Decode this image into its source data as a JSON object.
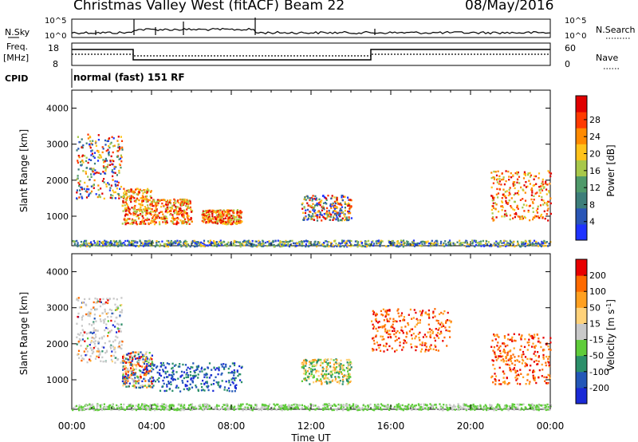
{
  "header": {
    "title": "Christmas Valley West (fitACF)",
    "beam": "Beam 22",
    "date": "08/May/2016"
  },
  "strips": {
    "nsky_label": "N.Sky",
    "nsearch_label": "N.Search",
    "freq_label_1": "Freq.",
    "freq_label_2": "[MHz]",
    "nave_label": "Nave",
    "cpid_label": "CPID",
    "cpid_value": "normal (fast) 151 RF",
    "noise_ticks": [
      "10^5",
      "10^0"
    ],
    "freq_ticks": [
      "18",
      "8"
    ],
    "nave_ticks": [
      "60",
      "0"
    ]
  },
  "colors": {
    "power": [
      "#1f33ff",
      "#2a56b6",
      "#3d7e7a",
      "#4f9a6a",
      "#a8c84a",
      "#ffc21a",
      "#ff8a00",
      "#ff3a00",
      "#e00000"
    ],
    "velocity": [
      "#1a2ad6",
      "#2357b8",
      "#2b8f6a",
      "#5fcc3a",
      "#c9c9c9",
      "#ffd27a",
      "#ffa020",
      "#ff6a00",
      "#e80000"
    ]
  },
  "chart_data": [
    {
      "type": "heatmap",
      "ylabel": "Slant Range [km]",
      "xlabel": "",
      "x_ticks": [
        "00:00",
        "04:00",
        "08:00",
        "12:00",
        "16:00",
        "20:00",
        "00:00"
      ],
      "y_ticks": [
        1000,
        2000,
        3000,
        4000
      ],
      "ylim": [
        180,
        4500
      ],
      "colorbar": {
        "label": "Power [dB]",
        "ticks": [
          "4",
          "8",
          "12",
          "16",
          "20",
          "24",
          "28"
        ],
        "range": [
          0,
          30
        ]
      },
      "scatter_regions": [
        {
          "t0": 0.2,
          "t1": 2.5,
          "r0": 1500,
          "r1": 3300,
          "level": "mixed"
        },
        {
          "t0": 2.5,
          "t1": 4.0,
          "r0": 800,
          "r1": 1800,
          "level": "high"
        },
        {
          "t0": 4.0,
          "t1": 6.0,
          "r0": 800,
          "r1": 1500,
          "level": "high"
        },
        {
          "t0": 6.5,
          "t1": 8.5,
          "r0": 800,
          "r1": 1200,
          "level": "high"
        },
        {
          "t0": 11.5,
          "t1": 14.0,
          "r0": 900,
          "r1": 1600,
          "level": "mixed"
        },
        {
          "t0": 21.0,
          "t1": 24.0,
          "r0": 900,
          "r1": 2300,
          "level": "high"
        },
        {
          "t0": 0.0,
          "t1": 24.0,
          "r0": 180,
          "r1": 350,
          "level": "ground"
        }
      ]
    },
    {
      "type": "heatmap",
      "ylabel": "Slant Range [km]",
      "xlabel": "Time UT",
      "x_ticks": [
        "00:00",
        "04:00",
        "08:00",
        "12:00",
        "16:00",
        "20:00",
        "00:00"
      ],
      "y_ticks": [
        1000,
        2000,
        3000,
        4000
      ],
      "ylim": [
        180,
        4500
      ],
      "colorbar": {
        "label": "Velocity [m s",
        "label_sup": "-1",
        "label_end": "]",
        "ticks": [
          "200",
          "100",
          "50",
          "15",
          "-15",
          "-50",
          "-100",
          "-200"
        ],
        "range": [
          -250,
          250
        ]
      },
      "scatter_regions": [
        {
          "t0": 0.2,
          "t1": 2.5,
          "r0": 1500,
          "r1": 3300,
          "level": "mixed-grey"
        },
        {
          "t0": 2.5,
          "t1": 4.0,
          "r0": 800,
          "r1": 1800,
          "level": "mixed"
        },
        {
          "t0": 4.0,
          "t1": 8.5,
          "r0": 700,
          "r1": 1500,
          "level": "blue"
        },
        {
          "t0": 11.5,
          "t1": 14.0,
          "r0": 900,
          "r1": 1600,
          "level": "orange"
        },
        {
          "t0": 15.0,
          "t1": 19.0,
          "r0": 1800,
          "r1": 3000,
          "level": "red"
        },
        {
          "t0": 21.0,
          "t1": 24.0,
          "r0": 900,
          "r1": 2300,
          "level": "red"
        },
        {
          "t0": 0.0,
          "t1": 24.0,
          "r0": 180,
          "r1": 350,
          "level": "ground"
        }
      ]
    }
  ]
}
